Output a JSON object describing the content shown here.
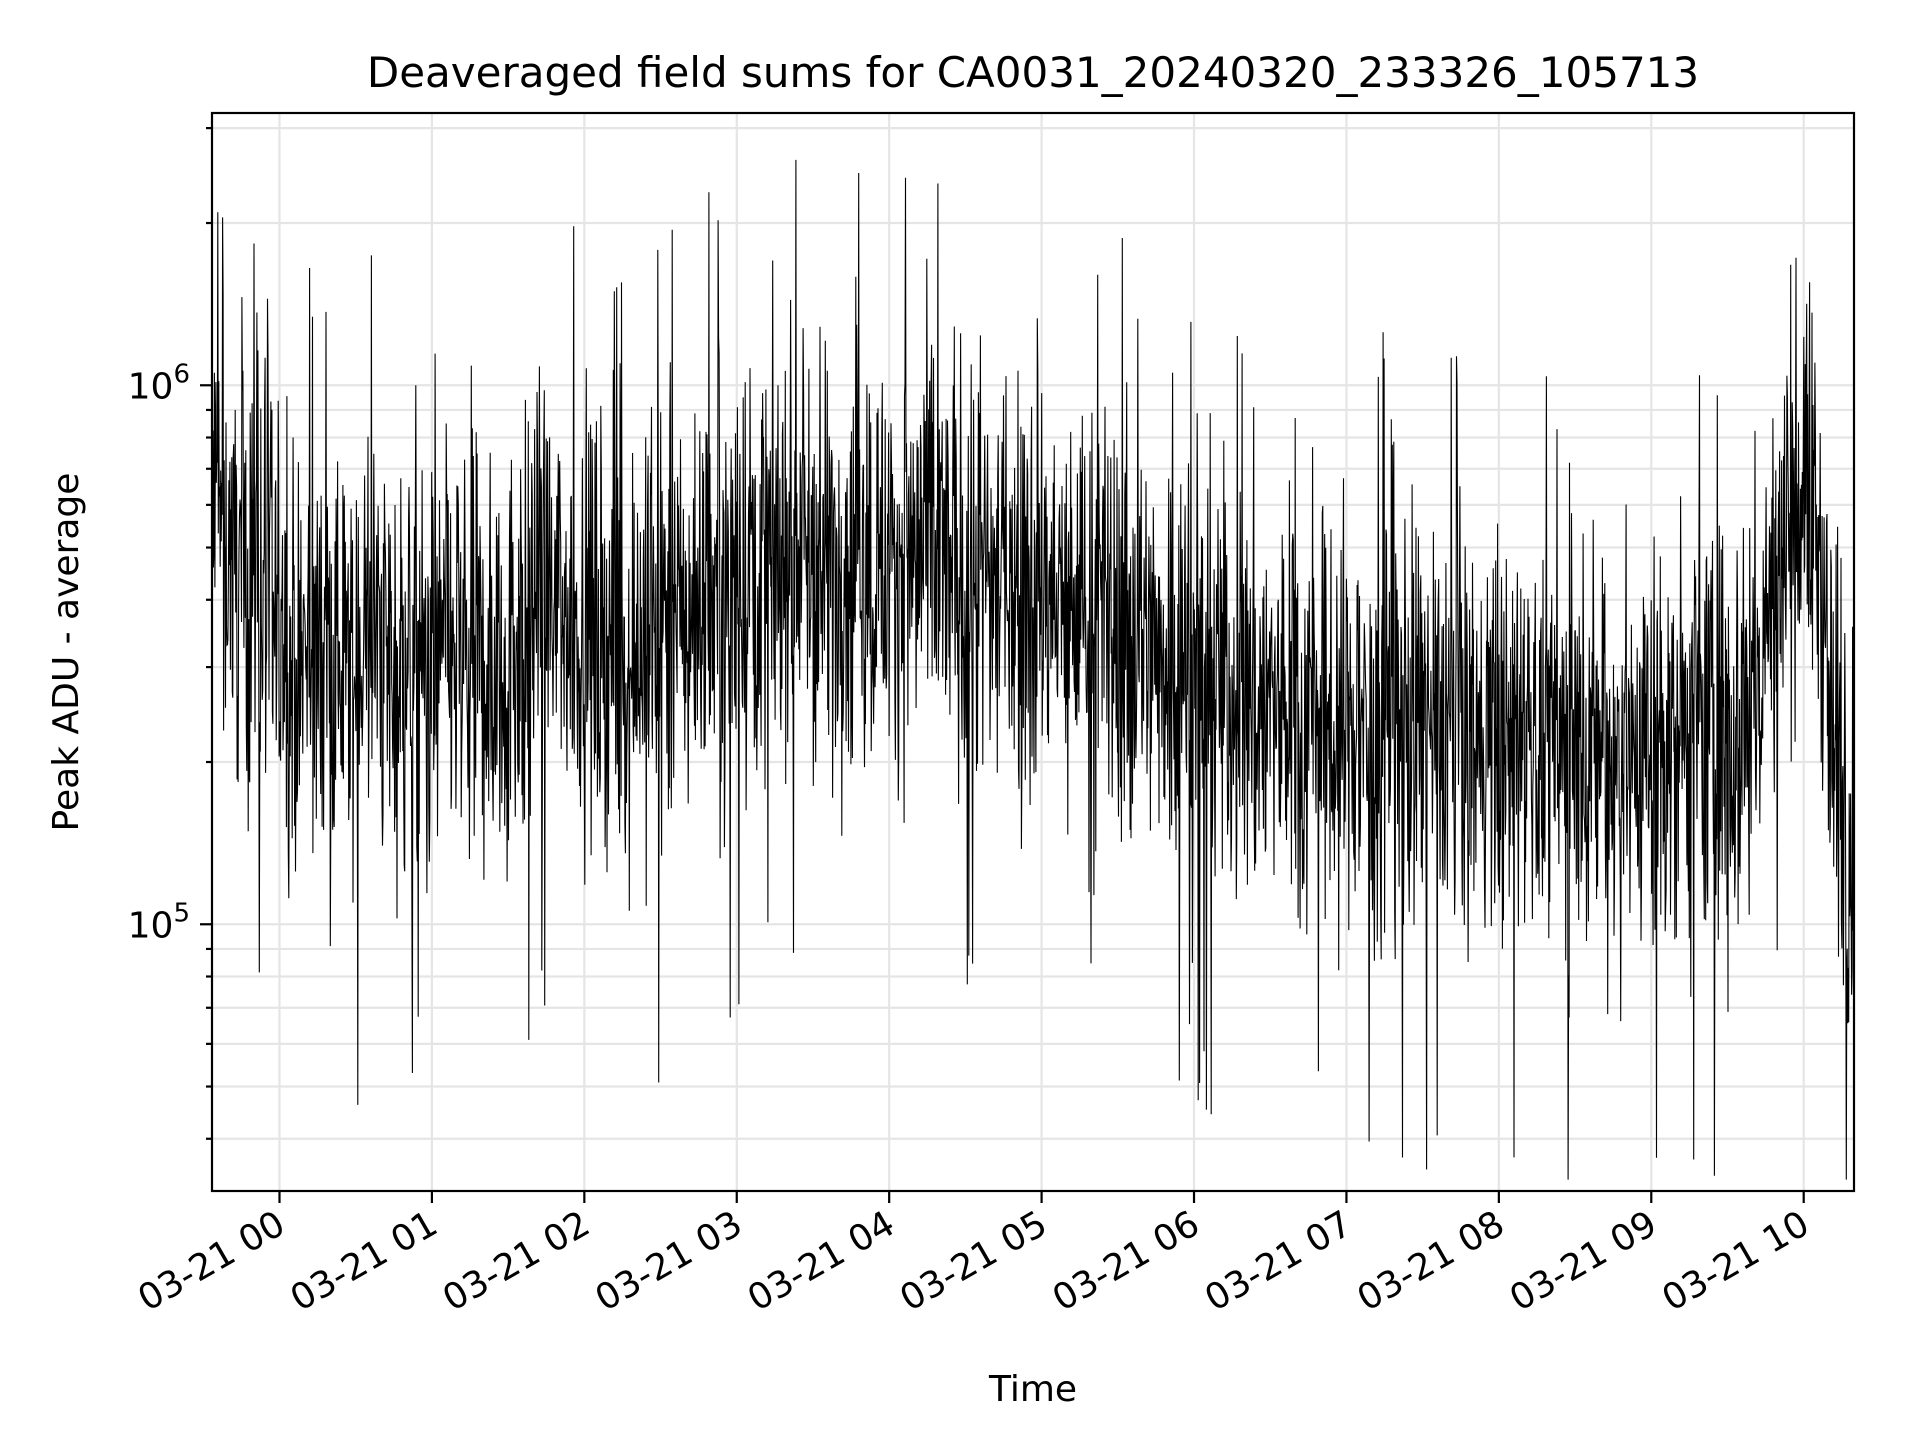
{
  "chart_data": {
    "type": "line",
    "title": "Deaveraged field sums for CA0031_20240320_233326_105713",
    "xlabel": "Time",
    "ylabel": "Peak ADU - average",
    "x_range": [
      "03-20 23:33:26",
      "03-21 10:20"
    ],
    "x_ticks": [
      "03-21 00",
      "03-21 01",
      "03-21 02",
      "03-21 03",
      "03-21 04",
      "03-21 05",
      "03-21 06",
      "03-21 07",
      "03-21 08",
      "03-21 09",
      "03-21 10"
    ],
    "y_scale": "log",
    "ylim": [
      32000,
      3200000
    ],
    "y_ticks": [
      {
        "value": 100000,
        "base": "10",
        "exp": "5"
      },
      {
        "value": 1000000,
        "base": "10",
        "exp": "6"
      }
    ],
    "grid": true,
    "color": "#000000",
    "series": [
      {
        "x_hours_after_2024_03_21_00": [
          -0.45,
          -0.4,
          -0.35,
          -0.3,
          -0.25,
          -0.2,
          -0.15,
          -0.1,
          0.0,
          0.1,
          0.2,
          0.3,
          0.4,
          0.5,
          0.6,
          0.7,
          0.8,
          0.9,
          1.0,
          1.1,
          1.2,
          1.3,
          1.4,
          1.5,
          1.6,
          1.7,
          1.8,
          1.9,
          2.0,
          2.1,
          2.2,
          2.3,
          2.4,
          2.5,
          2.6,
          2.7,
          2.8,
          2.9,
          3.0,
          3.1,
          3.2,
          3.3,
          3.4,
          3.5,
          3.6,
          3.7,
          3.8,
          3.9,
          4.0,
          4.1,
          4.2,
          4.3,
          4.4,
          4.5,
          4.6,
          4.7,
          4.8,
          4.9,
          5.0,
          5.1,
          5.2,
          5.3,
          5.4,
          5.5,
          5.6,
          5.7,
          5.8,
          5.9,
          6.0,
          6.1,
          6.2,
          6.3,
          6.4,
          6.5,
          6.6,
          6.7,
          6.8,
          6.9,
          7.0,
          7.1,
          7.2,
          7.3,
          7.4,
          7.5,
          7.6,
          7.7,
          7.8,
          7.9,
          8.0,
          8.1,
          8.2,
          8.3,
          8.4,
          8.5,
          8.6,
          8.7,
          8.8,
          8.9,
          9.0,
          9.1,
          9.2,
          9.3,
          9.4,
          9.5,
          9.6,
          9.7,
          9.8,
          9.9,
          10.0,
          10.1,
          10.2,
          10.3,
          10.35
        ],
        "y_center": [
          600000,
          560000,
          520000,
          480000,
          450000,
          420000,
          620000,
          400000,
          330000,
          300000,
          310000,
          320000,
          300000,
          310000,
          330000,
          320000,
          300000,
          280000,
          300000,
          320000,
          310000,
          300000,
          290000,
          320000,
          350000,
          400000,
          380000,
          370000,
          360000,
          350000,
          320000,
          330000,
          340000,
          350000,
          360000,
          380000,
          420000,
          450000,
          460000,
          470000,
          480000,
          500000,
          490000,
          480000,
          470000,
          480000,
          490000,
          470000,
          460000,
          470000,
          480000,
          470000,
          460000,
          450000,
          440000,
          430000,
          440000,
          420000,
          400000,
          390000,
          380000,
          370000,
          360000,
          350000,
          340000,
          330000,
          320000,
          310000,
          300000,
          290000,
          280000,
          270000,
          260000,
          255000,
          250000,
          245000,
          240000,
          238000,
          235000,
          232000,
          230000,
          232000,
          234000,
          236000,
          230000,
          225000,
          222000,
          220000,
          218000,
          216000,
          215000,
          214000,
          213000,
          212000,
          211000,
          210000,
          210000,
          210000,
          212000,
          214000,
          216000,
          220000,
          225000,
          230000,
          240000,
          280000,
          400000,
          550000,
          700000,
          500000,
          200000,
          150000,
          100000
        ],
        "y_spread_factor": 2.2
      }
    ]
  }
}
